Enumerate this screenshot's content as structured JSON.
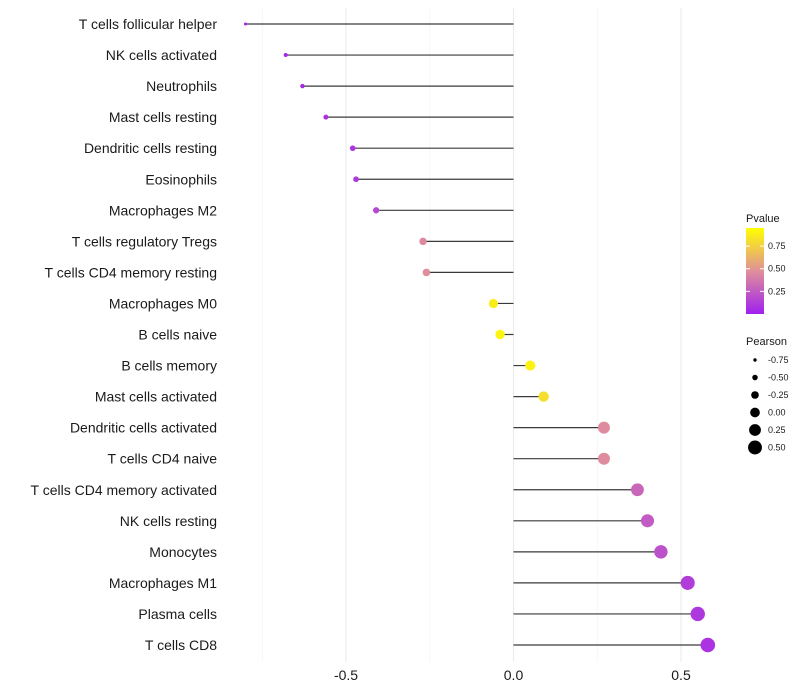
{
  "chart_data": {
    "type": "lollipop",
    "title": "",
    "xlabel": "",
    "ylabel": "",
    "xlim": [
      -0.8,
      0.6
    ],
    "xticks": [
      -0.5,
      0.0,
      0.5
    ],
    "xtick_labels": [
      "-0.5",
      "0.0",
      "0.5"
    ],
    "grid": true,
    "legend_position": "right",
    "points": [
      {
        "label": "T cells follicular helper",
        "value": -0.8,
        "pvalue": 0.01
      },
      {
        "label": "NK cells activated",
        "value": -0.68,
        "pvalue": 0.03
      },
      {
        "label": "Neutrophils",
        "value": -0.63,
        "pvalue": 0.04
      },
      {
        "label": "Mast cells resting",
        "value": -0.56,
        "pvalue": 0.07
      },
      {
        "label": "Dendritic cells resting",
        "value": -0.48,
        "pvalue": 0.1
      },
      {
        "label": "Eosinophils",
        "value": -0.47,
        "pvalue": 0.11
      },
      {
        "label": "Macrophages M2",
        "value": -0.41,
        "pvalue": 0.17
      },
      {
        "label": "T cells regulatory  Tregs ",
        "value": -0.27,
        "pvalue": 0.45
      },
      {
        "label": "T cells CD4 memory resting",
        "value": -0.26,
        "pvalue": 0.47
      },
      {
        "label": "Macrophages M0",
        "value": -0.06,
        "pvalue": 0.87
      },
      {
        "label": "B cells naive",
        "value": -0.04,
        "pvalue": 0.91
      },
      {
        "label": "B cells memory",
        "value": 0.05,
        "pvalue": 0.9
      },
      {
        "label": "Mast cells activated",
        "value": 0.09,
        "pvalue": 0.81
      },
      {
        "label": "Dendritic cells activated",
        "value": 0.27,
        "pvalue": 0.46
      },
      {
        "label": "T cells CD4 naive",
        "value": 0.27,
        "pvalue": 0.46
      },
      {
        "label": "T cells CD4 memory activated",
        "value": 0.37,
        "pvalue": 0.3
      },
      {
        "label": "NK cells resting",
        "value": 0.4,
        "pvalue": 0.25
      },
      {
        "label": "Monocytes",
        "value": 0.44,
        "pvalue": 0.21
      },
      {
        "label": "Macrophages M1",
        "value": 0.52,
        "pvalue": 0.12
      },
      {
        "label": "Plasma cells",
        "value": 0.55,
        "pvalue": 0.1
      },
      {
        "label": "T cells CD8",
        "value": 0.58,
        "pvalue": 0.08
      }
    ],
    "legend_pvalue": {
      "title": "Pvalue",
      "ticks": [
        0.25,
        0.5,
        0.75
      ],
      "tick_labels": [
        "0.25",
        "0.50",
        "0.75"
      ],
      "range": [
        0.0,
        0.95
      ],
      "color_low": "#a020f0",
      "color_mid": "#e0909a",
      "color_high": "#ffff00"
    },
    "legend_pearson": {
      "title": "Pearson",
      "values": [
        -0.75,
        -0.5,
        -0.25,
        0.0,
        0.25,
        0.5
      ],
      "labels": [
        "-0.75",
        "-0.50",
        "-0.25",
        "0.00",
        "0.25",
        "0.50"
      ]
    }
  }
}
